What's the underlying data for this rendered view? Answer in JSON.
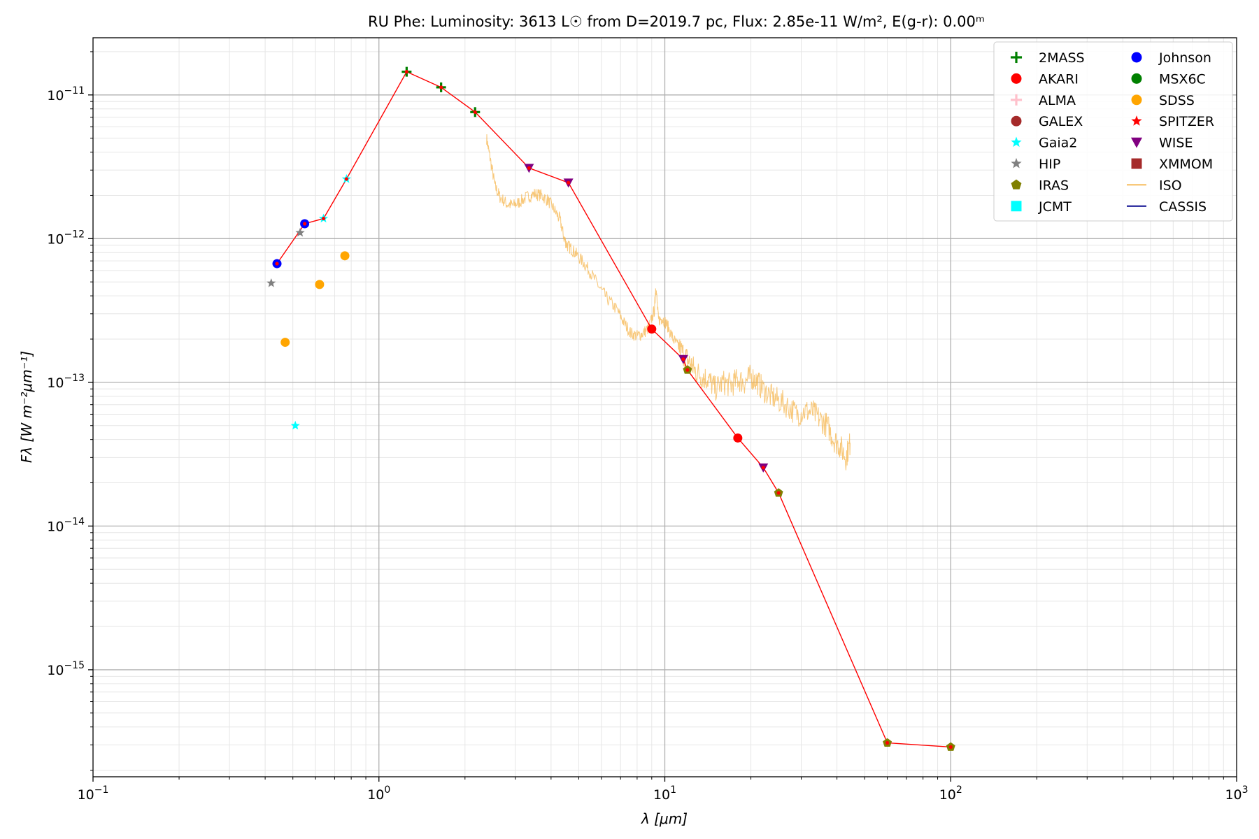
{
  "chart_data": {
    "type": "scatter",
    "title": "RU Phe:  Luminosity: 3613 L☉ from D=2019.7 pc, Flux: 2.85e-11 W/m², E(g-r): 0.00ᵐ",
    "xlabel": "λ [μm]",
    "ylabel": "Fλ [W m⁻²μm⁻¹]",
    "xscale": "log",
    "yscale": "log",
    "xlim": [
      0.1,
      1000
    ],
    "ylim": [
      1.8e-16,
      2.5e-11
    ],
    "grid": true,
    "legend_position": "top-right",
    "x_ticks": [
      {
        "value": 0.1,
        "base": "10",
        "exp": "−1"
      },
      {
        "value": 1,
        "base": "10",
        "exp": "0"
      },
      {
        "value": 10,
        "base": "10",
        "exp": "1"
      },
      {
        "value": 100,
        "base": "10",
        "exp": "2"
      },
      {
        "value": 1000,
        "base": "10",
        "exp": "3"
      }
    ],
    "y_ticks": [
      {
        "value": 1e-15,
        "base": "10",
        "exp": "−15"
      },
      {
        "value": 1e-14,
        "base": "10",
        "exp": "−14"
      },
      {
        "value": 1e-13,
        "base": "10",
        "exp": "−13"
      },
      {
        "value": 1e-12,
        "base": "10",
        "exp": "−12"
      },
      {
        "value": 1e-11,
        "base": "10",
        "exp": "−11"
      }
    ],
    "sed_line": {
      "color": "#ff0000",
      "x": [
        0.44,
        0.55,
        0.64,
        0.77,
        1.25,
        1.65,
        2.17,
        3.35,
        4.6,
        9.0,
        11.6,
        12.0,
        18.0,
        22.1,
        25.0,
        60.0,
        100.0
      ],
      "y": [
        6.7e-13,
        1.27e-12,
        1.38e-12,
        2.6e-12,
        1.45e-11,
        1.13e-11,
        7.6e-12,
        3.1e-12,
        2.45e-12,
        2.35e-13,
        1.45e-13,
        1.22e-13,
        4.1e-14,
        2.55e-14,
        1.7e-14,
        3.1e-16,
        2.9e-16
      ]
    },
    "iso_spectrum": {
      "name": "ISO",
      "color": "#f5b041",
      "x": [
        2.38,
        2.45,
        2.55,
        2.65,
        2.8,
        2.95,
        3.1,
        3.3,
        3.5,
        3.7,
        3.9,
        4.1,
        4.3,
        4.45,
        4.55,
        4.7,
        4.9,
        5.2,
        5.5,
        5.9,
        6.3,
        6.8,
        7.2,
        7.6,
        8.0,
        8.4,
        8.8,
        9.2,
        9.3,
        9.5,
        9.8,
        10.2,
        10.7,
        11.2,
        11.8,
        12.3,
        12.8,
        13.5,
        14.2,
        15.0,
        16.0,
        17.0,
        18.0,
        19.0,
        20.0,
        21.0,
        22.0,
        23.5,
        25.0,
        27.0,
        29.0,
        31.0,
        33.0,
        35.0,
        37.0,
        39.0,
        41.0,
        43.0,
        44.5
      ],
      "y": [
        5e-12,
        3.6e-12,
        2.3e-12,
        1.95e-12,
        1.75e-12,
        1.7e-12,
        1.8e-12,
        1.95e-12,
        2.05e-12,
        2e-12,
        1.85e-12,
        1.6e-12,
        1.35e-12,
        1e-12,
        9e-13,
        8.5e-13,
        7.8e-13,
        6.8e-13,
        5.8e-13,
        4.6e-13,
        3.8e-13,
        3.2e-13,
        2.6e-13,
        2.2e-13,
        2.1e-13,
        2.2e-13,
        2.4e-13,
        3.2e-13,
        4.8e-13,
        2.7e-13,
        2.8e-13,
        2.5e-13,
        2e-13,
        1.75e-13,
        1.5e-13,
        1.35e-13,
        1.2e-13,
        1.1e-13,
        1.05e-13,
        9e-14,
        1e-13,
        9.5e-14,
        1.05e-13,
        1e-13,
        1.1e-13,
        1.02e-13,
        9e-14,
        8e-14,
        7.5e-14,
        6.8e-14,
        6e-14,
        6.3e-14,
        6.2e-14,
        5.5e-14,
        5e-14,
        4e-14,
        3.6e-14,
        3e-14,
        3.8e-14
      ]
    },
    "series": [
      {
        "name": "2MASS",
        "marker": "plus",
        "color": "#008000",
        "points": [
          [
            1.25,
            1.45e-11
          ],
          [
            1.65,
            1.13e-11
          ],
          [
            2.17,
            7.6e-12
          ]
        ]
      },
      {
        "name": "AKARI",
        "marker": "circle",
        "color": "#ff0000",
        "points": [
          [
            9.0,
            2.35e-13
          ],
          [
            18.0,
            4.1e-14
          ]
        ]
      },
      {
        "name": "ALMA",
        "marker": "plus",
        "color": "#ffc0cb",
        "points": []
      },
      {
        "name": "GALEX",
        "marker": "circle",
        "color": "#a52a2a",
        "points": []
      },
      {
        "name": "Gaia2",
        "marker": "star",
        "color": "#00ffff",
        "points": [
          [
            0.51,
            5e-14
          ],
          [
            0.64,
            1.38e-12
          ],
          [
            0.77,
            2.6e-12
          ]
        ]
      },
      {
        "name": "HIP",
        "marker": "star",
        "color": "#808080",
        "points": [
          [
            0.42,
            4.9e-13
          ],
          [
            0.53,
            1.1e-12
          ]
        ]
      },
      {
        "name": "IRAS",
        "marker": "pentagon",
        "color": "#808000",
        "points": [
          [
            12.0,
            1.22e-13
          ],
          [
            25.0,
            1.7e-14
          ],
          [
            60.0,
            3.1e-16
          ],
          [
            100.0,
            2.9e-16
          ]
        ]
      },
      {
        "name": "JCMT",
        "marker": "square",
        "color": "#00ffff",
        "points": []
      },
      {
        "name": "Johnson",
        "marker": "circle",
        "color": "#0000ff",
        "points": [
          [
            0.44,
            6.7e-13
          ],
          [
            0.55,
            1.27e-12
          ]
        ]
      },
      {
        "name": "MSX6C",
        "marker": "circle",
        "color": "#008000",
        "points": []
      },
      {
        "name": "SDSS",
        "marker": "circle",
        "color": "#ffa500",
        "points": [
          [
            0.47,
            1.9e-13
          ],
          [
            0.62,
            4.8e-13
          ],
          [
            0.76,
            7.6e-13
          ]
        ]
      },
      {
        "name": "SPITZER",
        "marker": "star",
        "color": "#ff0000",
        "points": []
      },
      {
        "name": "WISE",
        "marker": "triangle-down",
        "color": "#800080",
        "points": [
          [
            3.35,
            3.1e-12
          ],
          [
            4.6,
            2.45e-12
          ],
          [
            11.6,
            1.45e-13
          ],
          [
            22.1,
            2.55e-14
          ]
        ]
      },
      {
        "name": "XMMOM",
        "marker": "square",
        "color": "#a52a2a",
        "points": []
      }
    ],
    "legend": [
      {
        "label": "2MASS",
        "marker": "plus",
        "color": "#008000"
      },
      {
        "label": "AKARI",
        "marker": "circle",
        "color": "#ff0000"
      },
      {
        "label": "ALMA",
        "marker": "plus",
        "color": "#ffc0cb"
      },
      {
        "label": "GALEX",
        "marker": "circle",
        "color": "#a52a2a"
      },
      {
        "label": "Gaia2",
        "marker": "star",
        "color": "#00ffff"
      },
      {
        "label": "HIP",
        "marker": "star",
        "color": "#808080"
      },
      {
        "label": "IRAS",
        "marker": "pentagon",
        "color": "#808000"
      },
      {
        "label": "JCMT",
        "marker": "square",
        "color": "#00ffff"
      },
      {
        "label": "Johnson",
        "marker": "circle",
        "color": "#0000ff"
      },
      {
        "label": "MSX6C",
        "marker": "circle",
        "color": "#008000"
      },
      {
        "label": "SDSS",
        "marker": "circle",
        "color": "#ffa500"
      },
      {
        "label": "SPITZER",
        "marker": "star",
        "color": "#ff0000"
      },
      {
        "label": "WISE",
        "marker": "triangle-down",
        "color": "#800080"
      },
      {
        "label": "XMMOM",
        "marker": "square",
        "color": "#a52a2a"
      },
      {
        "label": "ISO",
        "marker": "line",
        "color": "#f5b041"
      },
      {
        "label": "CASSIS",
        "marker": "line",
        "color": "#00008b"
      }
    ]
  }
}
